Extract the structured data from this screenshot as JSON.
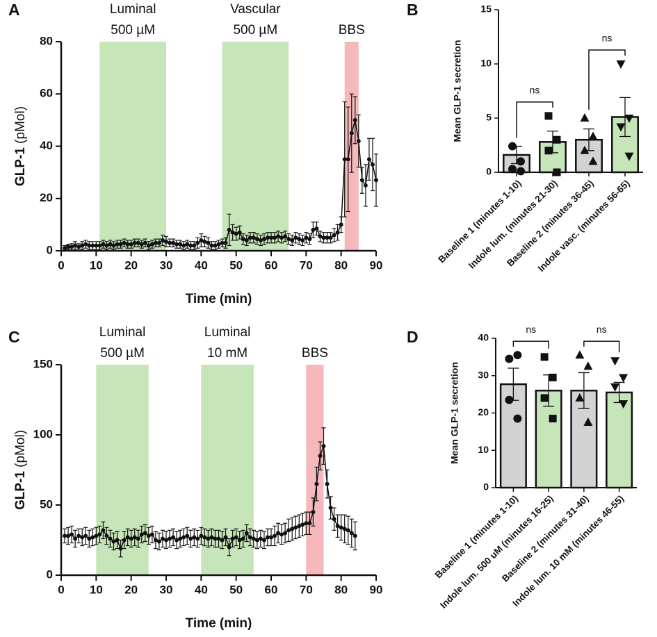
{
  "chart_data": [
    {
      "type": "line",
      "panel": "A",
      "xlabel": "Time (min)",
      "ylabel_bold": "GLP-1",
      "ylabel_unit": "(pMol)",
      "xlim": [
        0,
        90
      ],
      "xticks": [
        0,
        10,
        20,
        30,
        40,
        50,
        60,
        70,
        80,
        90
      ],
      "ylim": [
        0,
        80
      ],
      "yticks": [
        0,
        20,
        40,
        60,
        80
      ],
      "bands": [
        {
          "label": [
            "Luminal",
            "500 µM"
          ],
          "start": 11,
          "end": 30,
          "color": "#c6e5b9"
        },
        {
          "label": [
            "Vascular",
            "500 µM"
          ],
          "start": 46,
          "end": 65,
          "color": "#c6e5b9"
        },
        {
          "label": [
            "BBS"
          ],
          "start": 81,
          "end": 85,
          "color": "#f5b8bb"
        }
      ],
      "series": [
        {
          "color": "#111111",
          "x": [
            1,
            2,
            3,
            4,
            5,
            6,
            7,
            8,
            9,
            10,
            11,
            12,
            13,
            14,
            15,
            16,
            17,
            18,
            19,
            20,
            21,
            22,
            23,
            24,
            25,
            26,
            27,
            28,
            29,
            30,
            31,
            32,
            33,
            34,
            35,
            36,
            37,
            38,
            39,
            40,
            41,
            42,
            43,
            44,
            45,
            46,
            47,
            48,
            49,
            50,
            51,
            52,
            53,
            54,
            55,
            56,
            57,
            58,
            59,
            60,
            61,
            62,
            63,
            64,
            65,
            66,
            67,
            68,
            69,
            70,
            71,
            72,
            73,
            74,
            75,
            76,
            77,
            78,
            79,
            80,
            81,
            82,
            83,
            84,
            85,
            86,
            87,
            88,
            89,
            90
          ],
          "values": [
            1,
            1.5,
            1.5,
            2,
            1.5,
            2,
            2.5,
            2,
            2,
            2,
            2,
            2.5,
            2,
            2.5,
            2,
            2.5,
            2.5,
            3,
            2.5,
            2.5,
            3,
            3,
            2.5,
            3,
            2,
            2.5,
            3,
            3,
            4,
            3.5,
            3,
            3,
            2.5,
            2.5,
            2,
            2.5,
            2,
            2,
            3,
            4,
            3.5,
            3,
            2,
            2,
            2.5,
            3,
            3,
            8,
            7,
            6.5,
            7,
            4.5,
            4,
            5,
            5,
            4.5,
            4,
            4.5,
            5,
            5,
            5,
            5.5,
            5,
            5.5,
            4.5,
            4,
            5,
            4.5,
            4,
            5,
            4.5,
            8,
            8.5,
            5.5,
            5,
            5,
            5,
            6,
            7,
            10,
            35,
            35,
            45,
            50,
            42,
            27,
            25,
            35,
            33,
            27
          ],
          "errors": [
            1,
            1,
            1.2,
            1.5,
            1.2,
            1.5,
            1.5,
            1.5,
            1.5,
            1.5,
            1.5,
            1.5,
            1.5,
            1.5,
            1.5,
            1.5,
            1.5,
            1.5,
            1.5,
            1.5,
            1.5,
            1.5,
            1.5,
            1.5,
            1.5,
            1.5,
            1.5,
            1.5,
            2,
            2,
            1.5,
            1.5,
            1.5,
            1.5,
            1.5,
            1.5,
            1.5,
            1.5,
            2,
            2.5,
            2,
            2,
            1.5,
            1.5,
            1.5,
            1.5,
            2,
            6,
            3,
            2.5,
            2.5,
            2,
            2,
            2,
            2,
            2,
            2,
            2,
            2,
            2,
            2,
            2,
            2,
            2,
            2,
            2,
            2,
            2,
            2,
            2,
            2,
            3,
            2.5,
            2,
            2,
            2,
            2,
            2.5,
            3,
            3,
            22,
            20,
            15,
            9,
            10,
            5,
            8,
            8,
            10,
            10
          ]
        }
      ]
    },
    {
      "type": "bar",
      "panel": "B",
      "ylabel": "Mean GLP-1 secretion",
      "categories": [
        "Baseline 1 (minutes 1-10)",
        "Indole lum. (minutes 21-30)",
        "Baseline 2 (minutes 36-45)",
        "Indole vasc. (minutes 56-65)"
      ],
      "values": [
        1.6,
        2.8,
        3.0,
        5.1
      ],
      "errors": [
        0.8,
        1.0,
        1.0,
        1.8
      ],
      "points": [
        [
          2.4,
          1.0,
          0.3,
          0.1
        ],
        [
          5.2,
          3.0,
          2.0,
          0.0
        ],
        [
          5.0,
          3.3,
          2.0,
          1.0
        ],
        [
          10.0,
          5.0,
          4.2,
          1.5
        ]
      ],
      "markers": [
        "circle",
        "square",
        "triangle",
        "triangle-down"
      ],
      "colors": [
        "#d3d3d3",
        "#c6e5b9",
        "#d3d3d3",
        "#c6e5b9"
      ],
      "ylim": [
        0,
        15
      ],
      "yticks": [
        0,
        5,
        10,
        15
      ],
      "comparisons": [
        {
          "from": 0,
          "to": 1,
          "label": "ns"
        },
        {
          "from": 2,
          "to": 3,
          "label": "ns"
        }
      ]
    },
    {
      "type": "line",
      "panel": "C",
      "xlabel": "Time (min)",
      "ylabel_bold": "GLP-1",
      "ylabel_unit": "(pMol)",
      "xlim": [
        0,
        90
      ],
      "xticks": [
        0,
        10,
        20,
        30,
        40,
        50,
        60,
        70,
        80,
        90
      ],
      "ylim": [
        0,
        150
      ],
      "yticks": [
        0,
        50,
        100,
        150
      ],
      "bands": [
        {
          "label": [
            "Luminal",
            "500 µM"
          ],
          "start": 10,
          "end": 25,
          "color": "#c6e5b9"
        },
        {
          "label": [
            "Luminal",
            "10 mM"
          ],
          "start": 40,
          "end": 55,
          "color": "#c6e5b9"
        },
        {
          "label": [
            "BBS"
          ],
          "start": 70,
          "end": 75,
          "color": "#f5b8bb"
        }
      ],
      "series": [
        {
          "color": "#111111",
          "x": [
            1,
            2,
            3,
            4,
            5,
            6,
            7,
            8,
            9,
            10,
            11,
            12,
            13,
            14,
            15,
            16,
            17,
            18,
            19,
            20,
            21,
            22,
            23,
            24,
            25,
            26,
            27,
            28,
            29,
            30,
            31,
            32,
            33,
            34,
            35,
            36,
            37,
            38,
            39,
            40,
            41,
            42,
            43,
            44,
            45,
            46,
            47,
            48,
            49,
            50,
            51,
            52,
            53,
            54,
            55,
            56,
            57,
            58,
            59,
            60,
            61,
            62,
            63,
            64,
            65,
            66,
            67,
            68,
            69,
            70,
            71,
            72,
            73,
            74,
            75,
            76,
            77,
            78,
            79,
            80,
            81,
            82,
            83,
            84
          ],
          "values": [
            28,
            28,
            29,
            26,
            28,
            27,
            28,
            26,
            27,
            28,
            29,
            32,
            28,
            26,
            24,
            25,
            19,
            25,
            27,
            26,
            27,
            26,
            29,
            30,
            28,
            29,
            25,
            24,
            26,
            25,
            26,
            27,
            25,
            26,
            27,
            28,
            26,
            27,
            26,
            28,
            27,
            26,
            27,
            26,
            26,
            25,
            27,
            20,
            26,
            27,
            25,
            26,
            30,
            27,
            26,
            25,
            26,
            25,
            27,
            27,
            28,
            30,
            29,
            30,
            32,
            33,
            34,
            35,
            36,
            37,
            37,
            45,
            65,
            85,
            92,
            65,
            48,
            40,
            35,
            34,
            33,
            32,
            30,
            28
          ],
          "errors": [
            5,
            6,
            6,
            6,
            5,
            6,
            6,
            6,
            6,
            6,
            6,
            6,
            6,
            6,
            6,
            6,
            6,
            6,
            6,
            6,
            6,
            6,
            6,
            6,
            6,
            6,
            6,
            6,
            6,
            6,
            6,
            6,
            6,
            6,
            6,
            6,
            6,
            6,
            6,
            6,
            6,
            6,
            6,
            6,
            6,
            6,
            6,
            6,
            6,
            6,
            6,
            6,
            6,
            6,
            6,
            6,
            6,
            6,
            6,
            6,
            7,
            7,
            7,
            7,
            8,
            8,
            8,
            8,
            8,
            8,
            8,
            10,
            12,
            10,
            13,
            10,
            8,
            8,
            8,
            9,
            10,
            10,
            10,
            10
          ]
        }
      ]
    },
    {
      "type": "bar",
      "panel": "D",
      "ylabel": "Mean GLP-1 secretion",
      "categories": [
        "Baseline 1 (minutes 1-10)",
        "Indole lum. 500 uM (minutes 16-25)",
        "Baseline 2 (minutes 31-40)",
        "Indole lum. 10 mM (minutes 46-55)"
      ],
      "values": [
        27.7,
        26.0,
        26.0,
        25.5
      ],
      "errors": [
        4.3,
        4.2,
        4.8,
        2.7
      ],
      "points": [
        [
          34.5,
          35.5,
          23.5,
          18.5
        ],
        [
          35.0,
          29.5,
          24.0,
          18.5
        ],
        [
          35.5,
          32.5,
          24.0,
          17.5
        ],
        [
          34.0,
          29.5,
          27.0,
          22.5
        ]
      ],
      "markers": [
        "circle",
        "square",
        "triangle",
        "triangle-down"
      ],
      "colors": [
        "#d3d3d3",
        "#c6e5b9",
        "#d3d3d3",
        "#c6e5b9"
      ],
      "ylim": [
        0,
        40
      ],
      "yticks": [
        0,
        10,
        20,
        30,
        40
      ],
      "comparisons": [
        {
          "from": 0,
          "to": 1,
          "label": "ns"
        },
        {
          "from": 2,
          "to": 3,
          "label": "ns"
        }
      ]
    }
  ]
}
